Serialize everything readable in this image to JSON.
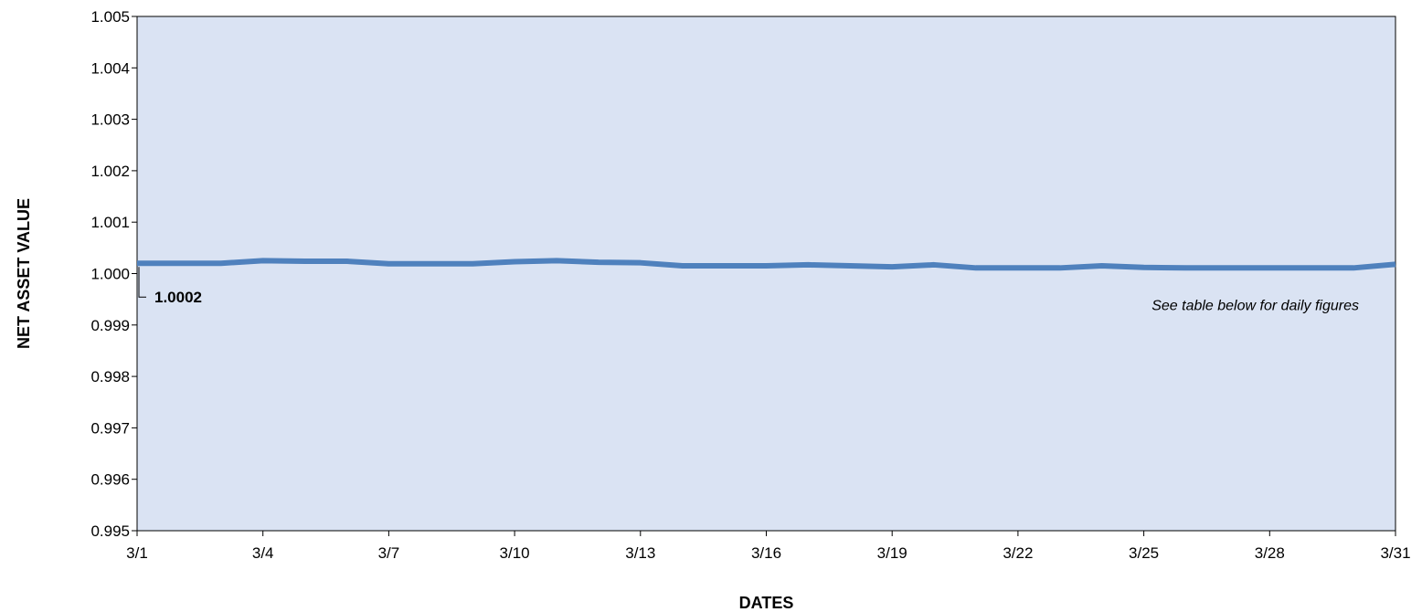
{
  "chart_data": {
    "type": "line",
    "xlabel": "DATES",
    "ylabel": "NET ASSET VALUE",
    "ylim": [
      0.995,
      1.005
    ],
    "yticks": [
      "0.995",
      "0.996",
      "0.997",
      "0.998",
      "0.999",
      "1.000",
      "1.001",
      "1.002",
      "1.003",
      "1.004",
      "1.005"
    ],
    "xlim": [
      1,
      31
    ],
    "xticks": [
      {
        "day": 1,
        "label": "3/1"
      },
      {
        "day": 4,
        "label": "3/4"
      },
      {
        "day": 7,
        "label": "3/7"
      },
      {
        "day": 10,
        "label": "3/10"
      },
      {
        "day": 13,
        "label": "3/13"
      },
      {
        "day": 16,
        "label": "3/16"
      },
      {
        "day": 19,
        "label": "3/19"
      },
      {
        "day": 22,
        "label": "3/22"
      },
      {
        "day": 25,
        "label": "3/25"
      },
      {
        "day": 28,
        "label": "3/28"
      },
      {
        "day": 31,
        "label": "3/31"
      }
    ],
    "series": [
      {
        "x": [
          "3/1",
          "3/2",
          "3/3",
          "3/4",
          "3/5",
          "3/6",
          "3/7",
          "3/8",
          "3/9",
          "3/10",
          "3/11",
          "3/12",
          "3/13",
          "3/14",
          "3/15",
          "3/16",
          "3/17",
          "3/18",
          "3/19",
          "3/20",
          "3/21",
          "3/22",
          "3/23",
          "3/24",
          "3/25",
          "3/26",
          "3/27",
          "3/28",
          "3/29",
          "3/30",
          "3/31"
        ],
        "values": [
          1.0002,
          1.0002,
          1.0002,
          1.00025,
          1.00024,
          1.00024,
          1.00019,
          1.00019,
          1.00019,
          1.00023,
          1.00025,
          1.00022,
          1.00021,
          1.00015,
          1.00015,
          1.00015,
          1.00017,
          1.00015,
          1.00013,
          1.00017,
          1.00011,
          1.00011,
          1.00011,
          1.00015,
          1.00012,
          1.00011,
          1.00011,
          1.00011,
          1.00011,
          1.00011,
          1.00018
        ],
        "color": "#4f81bd"
      }
    ],
    "annotations": {
      "first_value_label": "1.0002",
      "note": "See table below for daily figures"
    },
    "plot_background": "#dae3f3",
    "grid": false
  }
}
